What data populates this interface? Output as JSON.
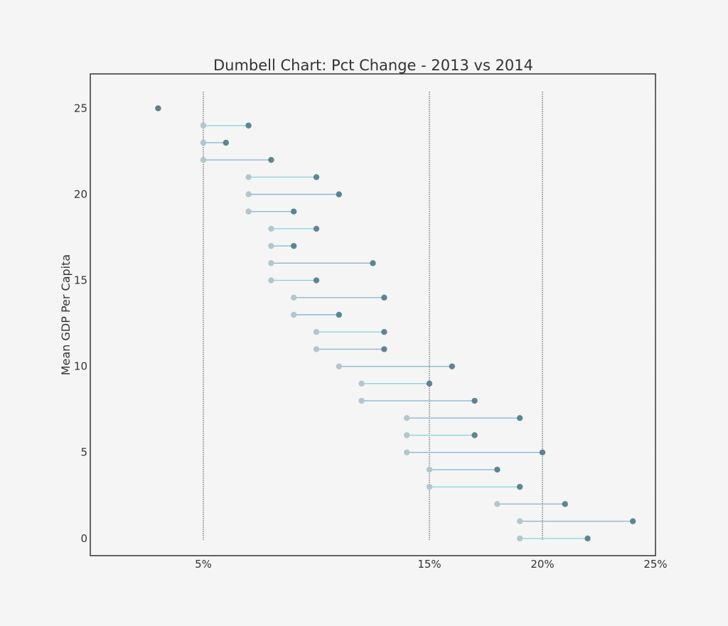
{
  "chart_data": {
    "type": "dumbbell",
    "title": "Dumbell Chart: Pct Change - 2013 vs 2014",
    "ylabel": "Mean GDP Per Capita",
    "xlabel": "",
    "x_ticks": [
      {
        "value": 5,
        "label": "5%"
      },
      {
        "value": 15,
        "label": "15%"
      },
      {
        "value": 20,
        "label": "20%"
      },
      {
        "value": 25,
        "label": "25%"
      }
    ],
    "y_ticks": [
      {
        "value": 0,
        "label": "0"
      },
      {
        "value": 5,
        "label": "5"
      },
      {
        "value": 10,
        "label": "10"
      },
      {
        "value": 15,
        "label": "15"
      },
      {
        "value": 20,
        "label": "20"
      },
      {
        "value": 25,
        "label": "25"
      }
    ],
    "xlim": [
      0,
      25
    ],
    "ylim": [
      -1,
      27
    ],
    "grid": "vertical dotted lines at x ticks",
    "colors": {
      "start_point": "#b4c6cc",
      "end_point": "#4f7a86",
      "line_light": "#8ed8da",
      "line_dark": "#8fb6cf"
    },
    "series": [
      {
        "y": 25,
        "start": 3.0,
        "end": 3.0
      },
      {
        "y": 24,
        "start": 5.0,
        "end": 7.0
      },
      {
        "y": 23,
        "start": 5.0,
        "end": 6.0
      },
      {
        "y": 22,
        "start": 5.0,
        "end": 8.0
      },
      {
        "y": 21,
        "start": 7.0,
        "end": 10.0
      },
      {
        "y": 20,
        "start": 7.0,
        "end": 11.0
      },
      {
        "y": 19,
        "start": 7.0,
        "end": 9.0
      },
      {
        "y": 18,
        "start": 8.0,
        "end": 10.0
      },
      {
        "y": 17,
        "start": 8.0,
        "end": 9.0
      },
      {
        "y": 16,
        "start": 8.0,
        "end": 12.5
      },
      {
        "y": 15,
        "start": 8.0,
        "end": 10.0
      },
      {
        "y": 14,
        "start": 9.0,
        "end": 13.0
      },
      {
        "y": 13,
        "start": 9.0,
        "end": 11.0
      },
      {
        "y": 12,
        "start": 10.0,
        "end": 13.0
      },
      {
        "y": 11,
        "start": 10.0,
        "end": 13.0
      },
      {
        "y": 10,
        "start": 11.0,
        "end": 16.0
      },
      {
        "y": 9,
        "start": 12.0,
        "end": 15.0
      },
      {
        "y": 8,
        "start": 12.0,
        "end": 17.0
      },
      {
        "y": 7,
        "start": 14.0,
        "end": 19.0
      },
      {
        "y": 6,
        "start": 14.0,
        "end": 17.0
      },
      {
        "y": 5,
        "start": 14.0,
        "end": 20.0
      },
      {
        "y": 4,
        "start": 15.0,
        "end": 18.0
      },
      {
        "y": 3,
        "start": 15.0,
        "end": 19.0
      },
      {
        "y": 2,
        "start": 18.0,
        "end": 21.0
      },
      {
        "y": 1,
        "start": 19.0,
        "end": 24.0
      },
      {
        "y": 0,
        "start": 19.0,
        "end": 22.0
      }
    ]
  }
}
